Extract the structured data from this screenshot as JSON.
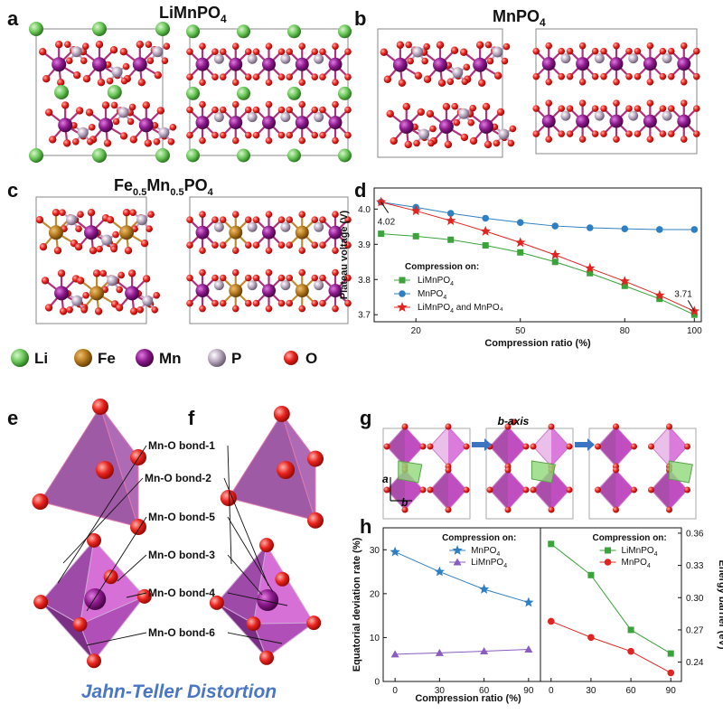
{
  "panels": {
    "a": {
      "label": "a",
      "title_main": "LiMnPO",
      "title_sub": "4"
    },
    "b": {
      "label": "b",
      "title_main": "MnPO",
      "title_sub": "4"
    },
    "c": {
      "label": "c",
      "title_pre": "Fe",
      "title_sub1": "0.5",
      "title_mid": "Mn",
      "title_sub2": "0.5",
      "title_post": "PO",
      "title_sub3": "4"
    },
    "d": {
      "label": "d"
    },
    "e": {
      "label": "e"
    },
    "f": {
      "label": "f"
    },
    "g": {
      "label": "g",
      "baxis": "b-axis",
      "axis_a": "a",
      "axis_b": "b"
    },
    "h": {
      "label": "h"
    }
  },
  "element_legend": [
    {
      "symbol": "Li",
      "color": "#6cc85a"
    },
    {
      "symbol": "Fe",
      "color": "#b57a1e"
    },
    {
      "symbol": "Mn",
      "color": "#8d1a8d"
    },
    {
      "symbol": "P",
      "color": "#b9a9c0"
    },
    {
      "symbol": "O",
      "color": "#e8231e"
    }
  ],
  "bond_labels": [
    "Mn-O bond-1",
    "Mn-O bond-2",
    "Mn-O bond-5",
    "Mn-O bond-3",
    "Mn-O bond-4",
    "Mn-O bond-6"
  ],
  "jahn_teller": "Jahn-Teller Distortion",
  "chart_data": [
    {
      "panel": "d",
      "type": "line",
      "xlabel": "Compression ratio (%)",
      "ylabel": "Plateau voltage (V)",
      "xlim": [
        8,
        102
      ],
      "ylim": [
        3.68,
        4.06
      ],
      "xticks": [
        20,
        50,
        80,
        100
      ],
      "yticks": [
        3.7,
        3.8,
        3.9,
        4.0
      ],
      "legend_title": "Compression on:",
      "annotations": [
        {
          "text": "4.02",
          "x": 10,
          "y": 4.02
        },
        {
          "text": "3.71",
          "x": 100,
          "y": 3.71
        }
      ],
      "series": [
        {
          "name_main": "LiMnPO",
          "name_sub": "4",
          "name_post": "",
          "marker": "square",
          "color": "#3aa33a",
          "x": [
            10,
            20,
            30,
            40,
            50,
            60,
            70,
            80,
            90,
            100
          ],
          "y": [
            3.93,
            3.923,
            3.913,
            3.897,
            3.877,
            3.85,
            3.818,
            3.782,
            3.745,
            3.7
          ]
        },
        {
          "name_main": "MnPO",
          "name_sub": "4",
          "name_post": "",
          "marker": "circle",
          "color": "#2f80c2",
          "x": [
            10,
            20,
            30,
            40,
            50,
            60,
            70,
            80,
            90,
            100
          ],
          "y": [
            4.02,
            4.005,
            3.988,
            3.974,
            3.962,
            3.952,
            3.947,
            3.944,
            3.942,
            3.942
          ]
        },
        {
          "name_main": "LiMnPO",
          "name_sub": "4",
          "name_post": " and MnPO₄",
          "marker": "star",
          "color": "#e0241f",
          "x": [
            10,
            20,
            30,
            40,
            50,
            60,
            70,
            80,
            90,
            100
          ],
          "y": [
            4.02,
            3.995,
            3.967,
            3.937,
            3.905,
            3.87,
            3.832,
            3.795,
            3.755,
            3.71
          ]
        }
      ]
    },
    {
      "panel": "h-left",
      "type": "line",
      "xlabel": "Compression ratio (%)",
      "ylabel": "Equatorial deviation rate (%)",
      "xlim": [
        -8,
        98
      ],
      "ylim": [
        0,
        35
      ],
      "xticks": [
        0,
        30,
        60,
        90
      ],
      "yticks": [
        0,
        10,
        20,
        30
      ],
      "legend_title": "Compression on:",
      "series": [
        {
          "name_main": "MnPO",
          "name_sub": "4",
          "marker": "star",
          "color": "#2f80c2",
          "x": [
            0,
            30,
            60,
            90
          ],
          "y": [
            29.5,
            25.0,
            21.0,
            18.0
          ]
        },
        {
          "name_main": "LiMnPO",
          "name_sub": "4",
          "marker": "triangle",
          "color": "#8a5cc0",
          "x": [
            0,
            30,
            60,
            90
          ],
          "y": [
            6.2,
            6.5,
            6.9,
            7.3
          ]
        }
      ]
    },
    {
      "panel": "h-right",
      "type": "line",
      "xlabel": "",
      "ylabel": "Energy barrier (eV)",
      "xlim": [
        -8,
        98
      ],
      "ylim": [
        0.222,
        0.365
      ],
      "xticks": [
        0,
        30,
        60,
        90
      ],
      "yticks": [
        0.24,
        0.27,
        0.3,
        0.33,
        0.36
      ],
      "legend_title": "Compression on:",
      "series": [
        {
          "name_main": "LiMnPO",
          "name_sub": "4",
          "marker": "square",
          "color": "#3aa33a",
          "x": [
            0,
            30,
            60,
            90
          ],
          "y": [
            0.35,
            0.321,
            0.27,
            0.248
          ]
        },
        {
          "name_main": "MnPO",
          "name_sub": "4",
          "marker": "circle",
          "color": "#e0241f",
          "x": [
            0,
            30,
            60,
            90
          ],
          "y": [
            0.278,
            0.263,
            0.25,
            0.23
          ]
        }
      ]
    }
  ]
}
